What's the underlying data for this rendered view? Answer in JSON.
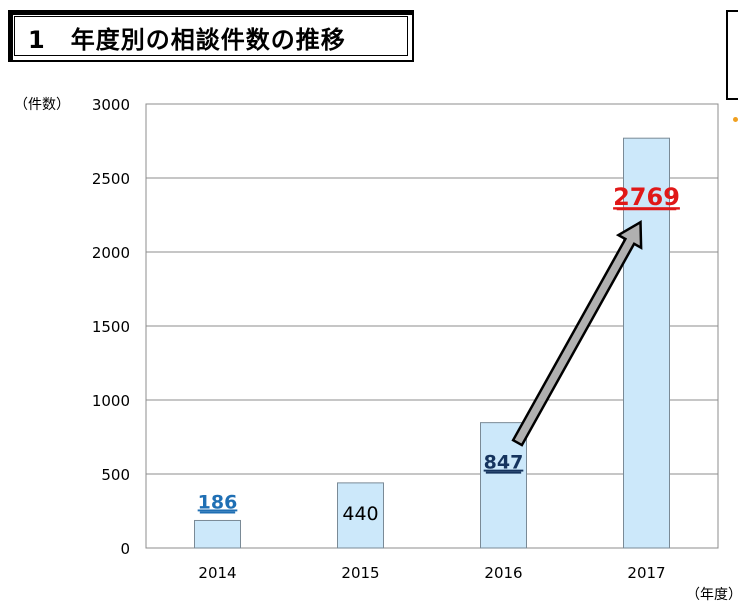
{
  "header": {
    "title": "1　年度別の相談件数の推移"
  },
  "colors": {
    "bar_fill": "#cce8fa",
    "bar_stroke": "#7a8a96",
    "grid": "#8c8c8c",
    "label_2014": "#1f6fb4",
    "label_2015": "#000000",
    "label_2016": "#16345e",
    "label_2017": "#e01818",
    "arrow_fill": "#b0b0b0"
  },
  "chart_data": {
    "type": "bar",
    "title": "1　年度別の相談件数の推移",
    "ylabel": "（件数）",
    "xlabel": "（年度）",
    "categories": [
      "2014",
      "2015",
      "2016",
      "2017"
    ],
    "values": [
      186,
      440,
      847,
      2769
    ],
    "data_labels": [
      "186",
      "440",
      "847",
      "2769"
    ],
    "ylim": [
      0,
      3000
    ],
    "yticks": [
      0,
      500,
      1000,
      1500,
      2000,
      2500,
      3000
    ],
    "grid": true,
    "annotations": [
      {
        "type": "arrow",
        "from": "2016",
        "to": "2017"
      }
    ]
  }
}
